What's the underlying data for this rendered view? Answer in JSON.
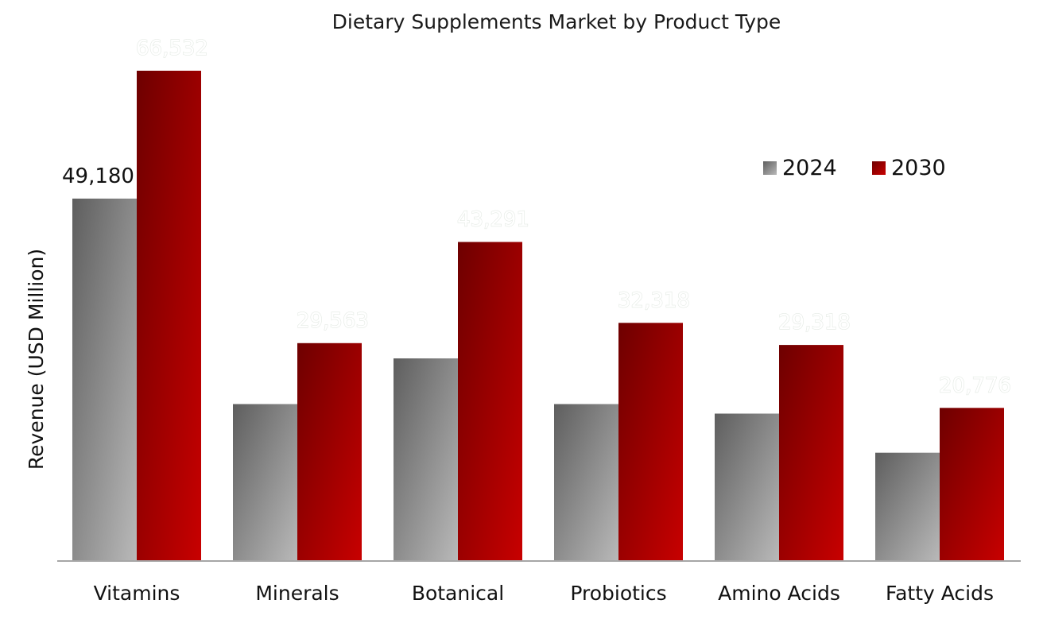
{
  "chart_data": {
    "type": "bar",
    "title": "Dietary Supplements Market by Product Type",
    "xlabel": "",
    "ylabel": "Revenue (USD Million)",
    "categories": [
      "Vitamins",
      "Minerals",
      "Botanical",
      "Probiotics",
      "Amino Acids",
      "Fatty Acids"
    ],
    "series": [
      {
        "name": "2024",
        "color": "#8c8c8c",
        "values": [
          49180,
          21300,
          27500,
          21300,
          20000,
          14700
        ],
        "labels": [
          "49,180",
          "",
          "",
          "",
          "",
          ""
        ]
      },
      {
        "name": "2030",
        "color": "#b00000",
        "values": [
          66532,
          29563,
          43291,
          32318,
          29318,
          20776
        ],
        "labels": [
          "66,532",
          "29,563",
          "43,291",
          "32,318",
          "29,318",
          "20,776"
        ]
      }
    ],
    "ylim": [
      0,
      67500
    ],
    "grid": false,
    "legend_position": "top-right"
  }
}
